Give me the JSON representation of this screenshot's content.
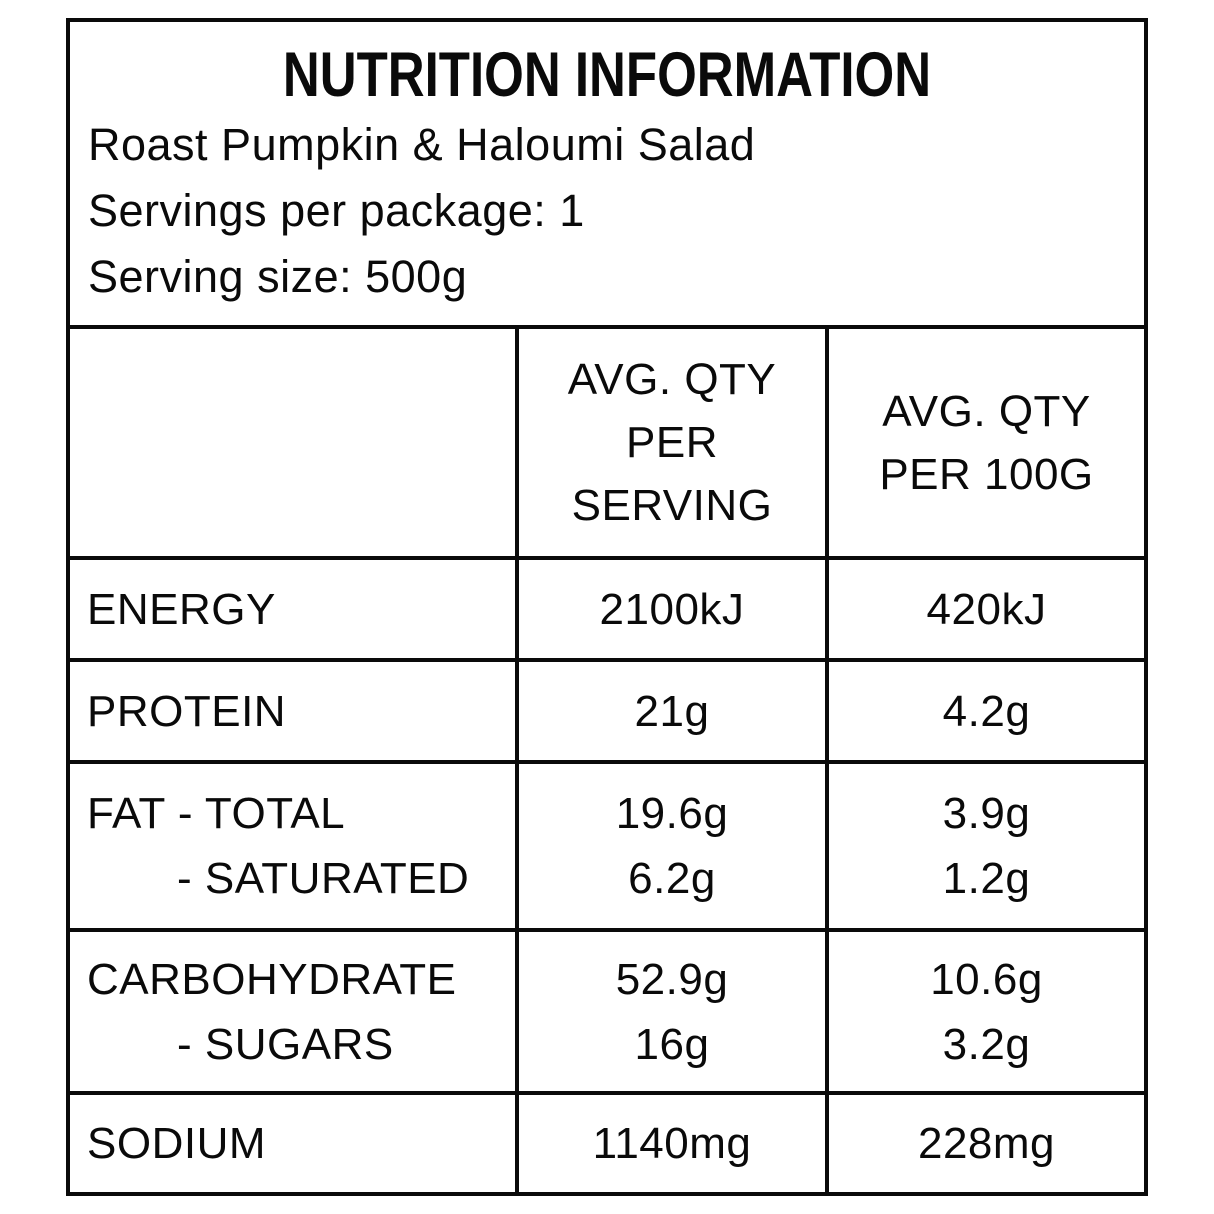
{
  "colors": {
    "background": "#ffffff",
    "text": "#0a0a0a",
    "border": "#0a0a0a"
  },
  "header": {
    "title": "NUTRITION INFORMATION",
    "product_name": "Roast Pumpkin & Haloumi Salad",
    "servings_per_package": "Servings per package: 1",
    "serving_size": "Serving size: 500g"
  },
  "table": {
    "column_headers": {
      "nutrient": "",
      "per_serving_lines": [
        "AVG. QTY",
        "PER",
        "SERVING"
      ],
      "per_100g_lines": [
        "AVG. QTY",
        "PER 100G"
      ]
    },
    "rows": [
      {
        "labels": [
          "ENERGY"
        ],
        "per_serving": [
          "2100kJ"
        ],
        "per_100g": [
          "420kJ"
        ]
      },
      {
        "labels": [
          "PROTEIN"
        ],
        "per_serving": [
          "21g"
        ],
        "per_100g": [
          "4.2g"
        ]
      },
      {
        "labels": [
          "FAT - TOTAL",
          "- SATURATED"
        ],
        "per_serving": [
          "19.6g",
          "6.2g"
        ],
        "per_100g": [
          "3.9g",
          "1.2g"
        ]
      },
      {
        "labels": [
          "CARBOHYDRATE",
          "- SUGARS"
        ],
        "per_serving": [
          "52.9g",
          "16g"
        ],
        "per_100g": [
          "10.6g",
          "3.2g"
        ]
      },
      {
        "labels": [
          "SODIUM"
        ],
        "per_serving": [
          "1140mg"
        ],
        "per_100g": [
          "228mg"
        ]
      }
    ]
  }
}
